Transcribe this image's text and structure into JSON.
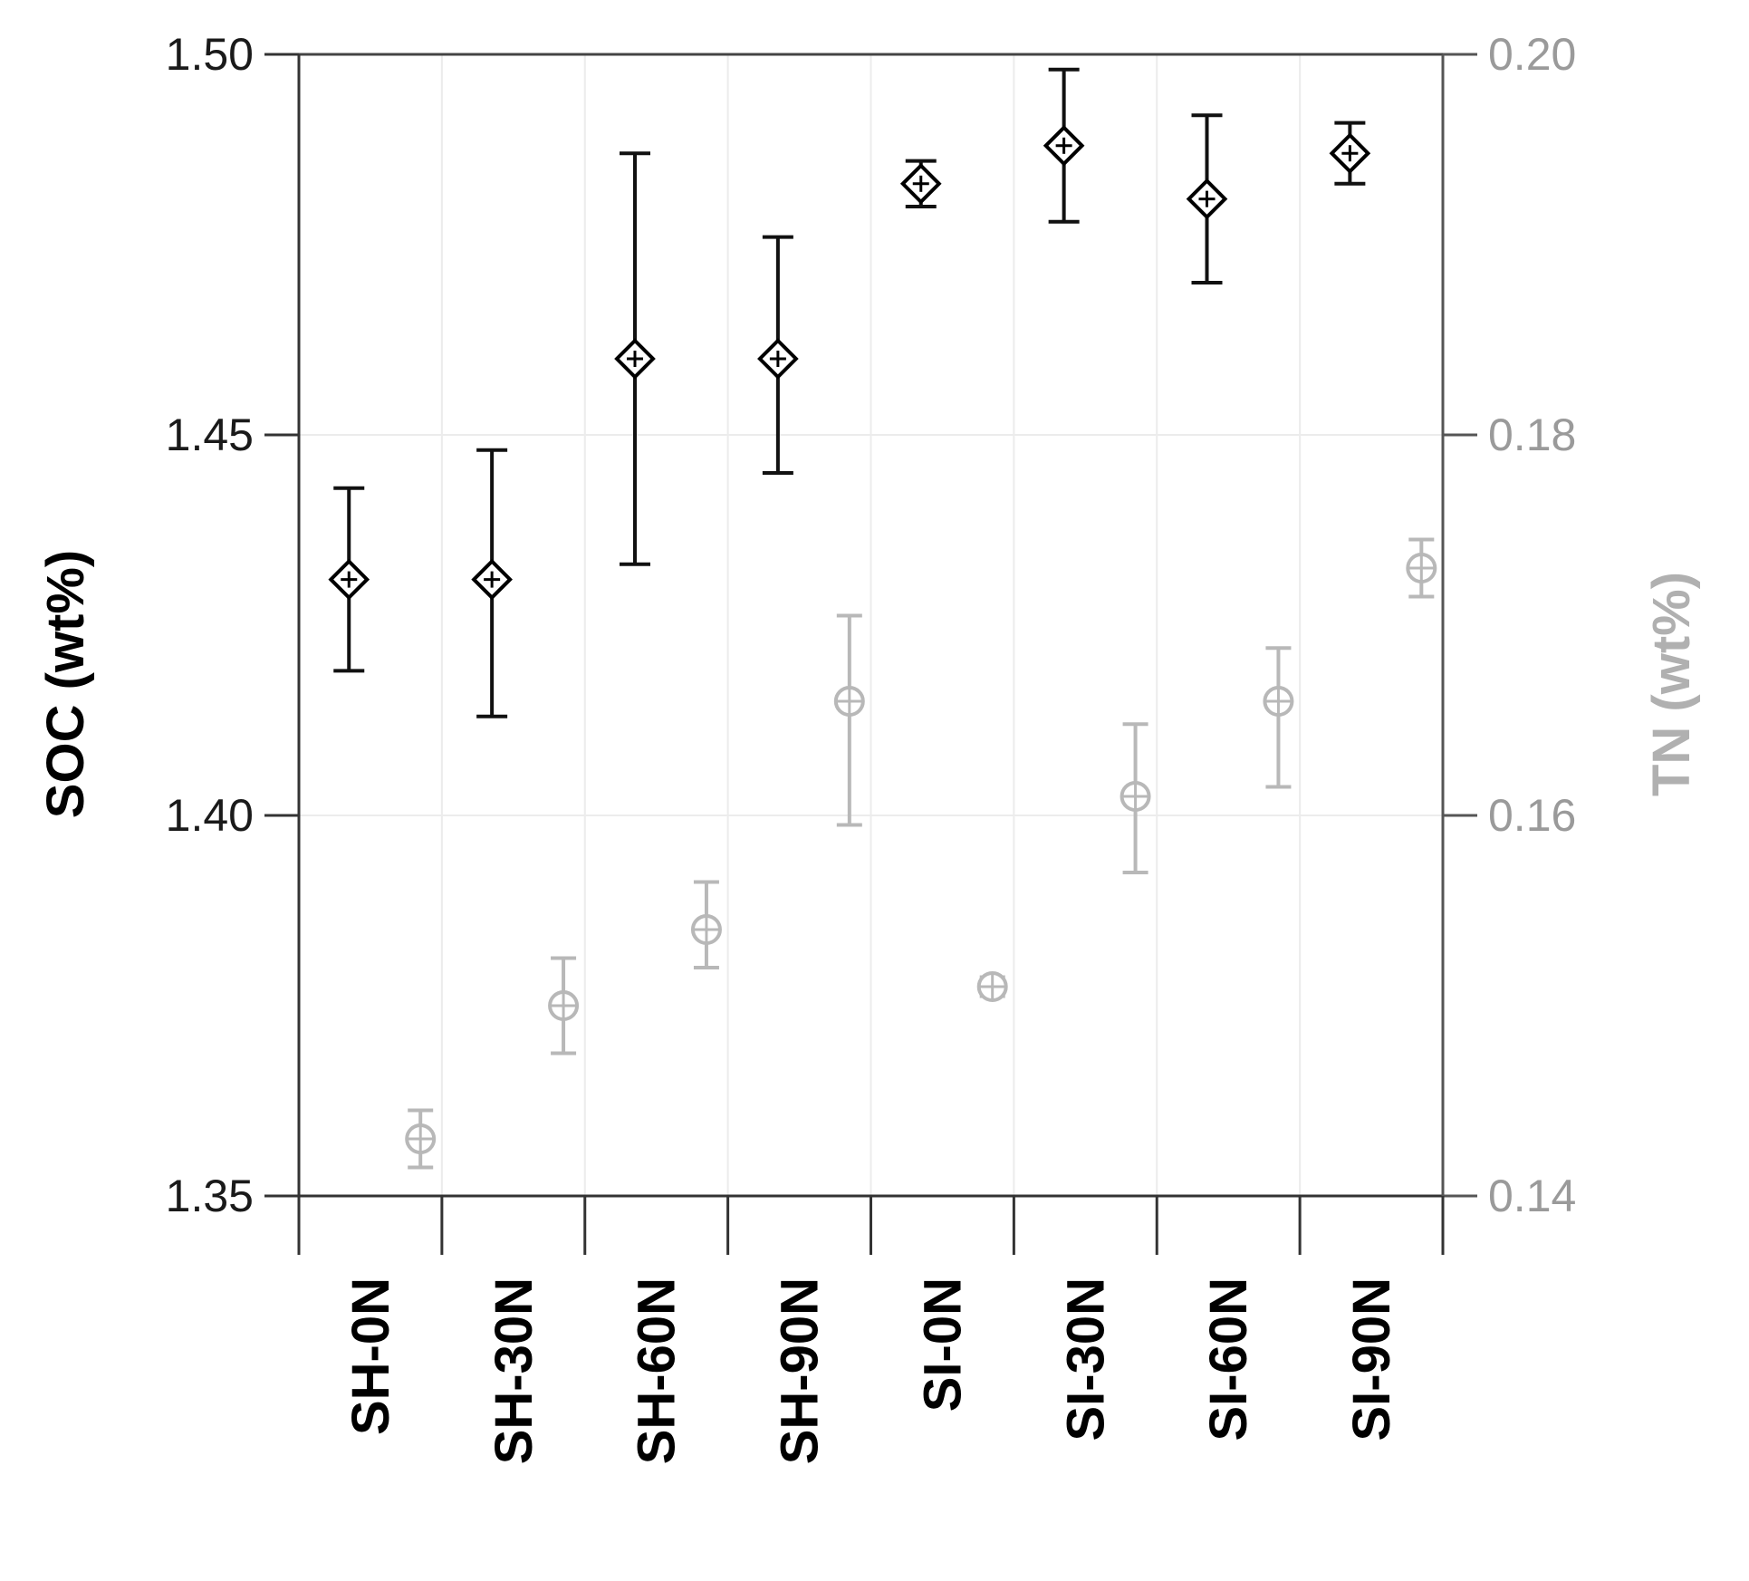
{
  "chart_data": {
    "type": "scatter",
    "title": "",
    "categories": [
      "SH-0N",
      "SH-30N",
      "SH-60N",
      "SH-90N",
      "SI-0N",
      "SI-30N",
      "SI-60N",
      "SI-90N"
    ],
    "ylabel_left": "SOC (wt%)",
    "ylabel_right": "TN (wt%)",
    "ylim_left": [
      1.35,
      1.5
    ],
    "ylim_right": [
      0.14,
      0.2
    ],
    "yticks_left": [
      "1.35",
      "1.40",
      "1.45",
      "1.50"
    ],
    "yticks_right": [
      "0.14",
      "0.16",
      "0.18",
      "0.20"
    ],
    "grid": true,
    "series": [
      {
        "axis": "left",
        "marker": "diamond-plus",
        "color": "#000000",
        "values": [
          1.431,
          1.431,
          1.46,
          1.46,
          1.483,
          1.488,
          1.481,
          1.487
        ],
        "error_low": [
          1.419,
          1.413,
          1.433,
          1.445,
          1.48,
          1.478,
          1.47,
          1.483
        ],
        "error_high": [
          1.443,
          1.448,
          1.487,
          1.476,
          1.486,
          1.498,
          1.492,
          1.491
        ]
      },
      {
        "axis": "right",
        "marker": "circle-plus",
        "color": "#b8b8b8",
        "values": [
          0.143,
          0.15,
          0.154,
          0.166,
          0.151,
          0.161,
          0.166,
          0.173
        ],
        "error_low": [
          0.1415,
          0.1475,
          0.152,
          0.1595,
          0.1505,
          0.157,
          0.1615,
          0.1715
        ],
        "error_high": [
          0.1445,
          0.1525,
          0.1565,
          0.1705,
          0.1515,
          0.1648,
          0.1688,
          0.1745
        ]
      }
    ]
  }
}
